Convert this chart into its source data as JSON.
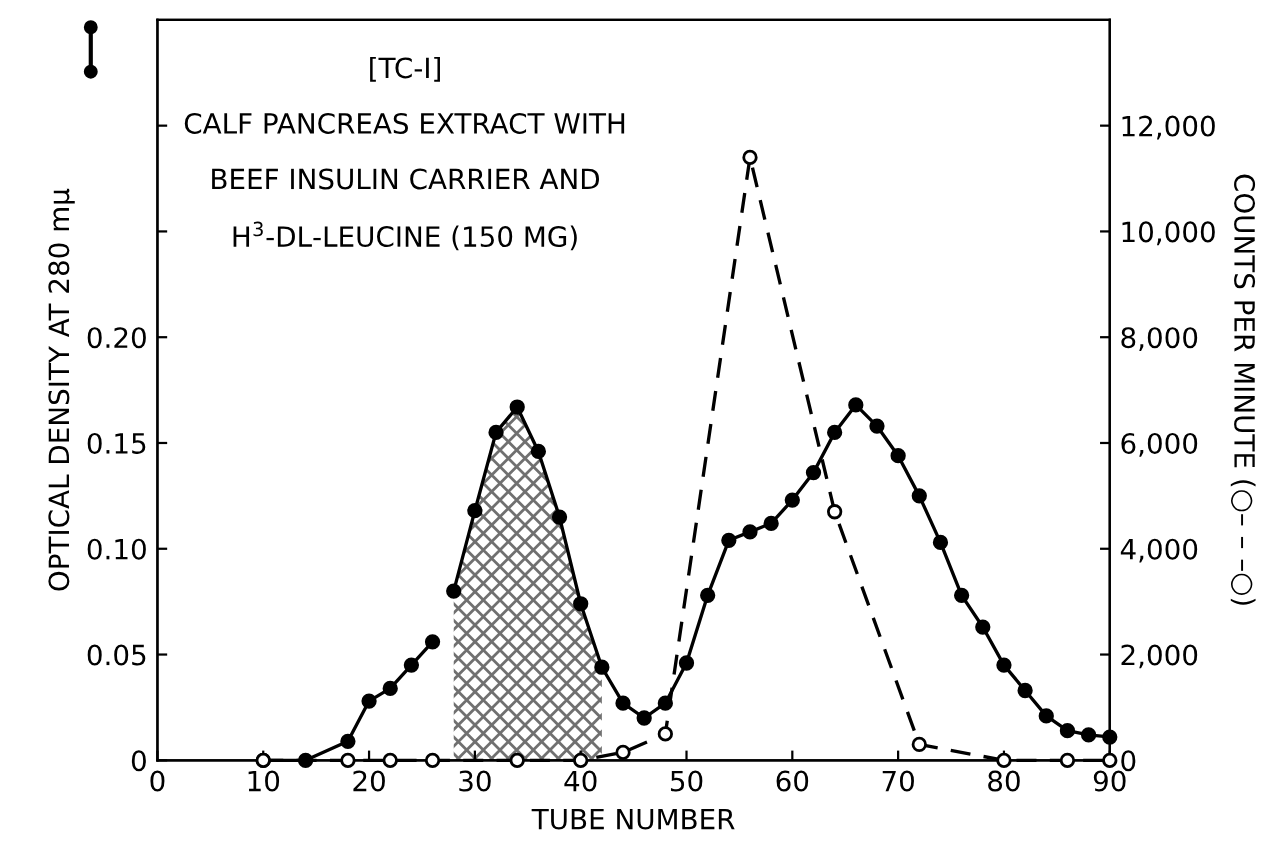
{
  "chart_data": {
    "type": "line",
    "xlabel": "TUBE NUMBER",
    "ylabel": "OPTICAL DENSITY AT 280 mμ",
    "y2label": "COUNTS PER MINUTE (○– – –○)",
    "annotations": [
      "[TC-I]",
      "CALF PANCREAS EXTRACT WITH",
      "BEEF INSULIN CARRIER AND",
      "H$^{3}$-DL-LEUCINE (150 MG)"
    ],
    "xlim": [
      0,
      90
    ],
    "xticks": [
      0,
      10,
      20,
      30,
      40,
      50,
      60,
      70,
      80,
      90
    ],
    "ylim": [
      0,
      0.35
    ],
    "yticks": [
      0,
      0.05,
      {
        "value": 0.1,
        "label": "0.10"
      },
      0.15,
      {
        "value": 0.2,
        "label": "0.20"
      },
      {
        "value": 0.25,
        "label": null
      },
      {
        "value": 0.3,
        "label": null
      }
    ],
    "y2lim": [
      0,
      14000
    ],
    "y2ticks": [
      0,
      {
        "value": 2000,
        "label": "2,000"
      },
      {
        "value": 4000,
        "label": "4,000"
      },
      {
        "value": 6000,
        "label": "6,000"
      },
      {
        "value": 8000,
        "label": "8,000"
      },
      {
        "value": 10000,
        "label": "10,000"
      },
      {
        "value": 12000,
        "label": "12,000"
      }
    ],
    "grid": false,
    "series": [
      {
        "type": "area",
        "color": "#707070",
        "x": [
          28,
          30,
          32,
          34,
          36,
          38,
          40,
          42
        ],
        "values": [
          0.08,
          0.118,
          0.155,
          0.167,
          0.146,
          0.115,
          0.074,
          0.044
        ]
      },
      {
        "color": "#000000",
        "marker": "circle",
        "line_style": "solid",
        "x": [
          10,
          14,
          18,
          20,
          22,
          24,
          26,
          27,
          28,
          30,
          32,
          34,
          36,
          38,
          40,
          42,
          44,
          46,
          48,
          50,
          52,
          54,
          56,
          58,
          60,
          62,
          64,
          66,
          68,
          70,
          72,
          74,
          76,
          78,
          80,
          82,
          84,
          86,
          88,
          90
        ],
        "values": [
          0,
          0,
          0.009,
          0.028,
          0.034,
          0.045,
          0.056,
          null,
          0.08,
          0.118,
          0.155,
          0.167,
          0.146,
          0.115,
          0.074,
          0.044,
          0.027,
          0.02,
          0.027,
          0.046,
          0.078,
          0.104,
          0.108,
          0.112,
          0.123,
          0.136,
          0.155,
          0.168,
          0.158,
          0.144,
          0.125,
          0.103,
          0.078,
          0.063,
          0.045,
          0.033,
          0.021,
          0.014,
          0.012,
          0.011
        ]
      },
      {
        "color": "#000000",
        "marker": "circle",
        "line_style": "dashed",
        "axis": "y2",
        "x": [
          10,
          18,
          22,
          26,
          34,
          40,
          44,
          48,
          56,
          64,
          72,
          80,
          86,
          90
        ],
        "values": [
          0,
          0,
          0,
          0,
          0,
          0,
          150,
          500,
          11400,
          4700,
          300,
          0,
          0,
          0
        ]
      }
    ]
  }
}
